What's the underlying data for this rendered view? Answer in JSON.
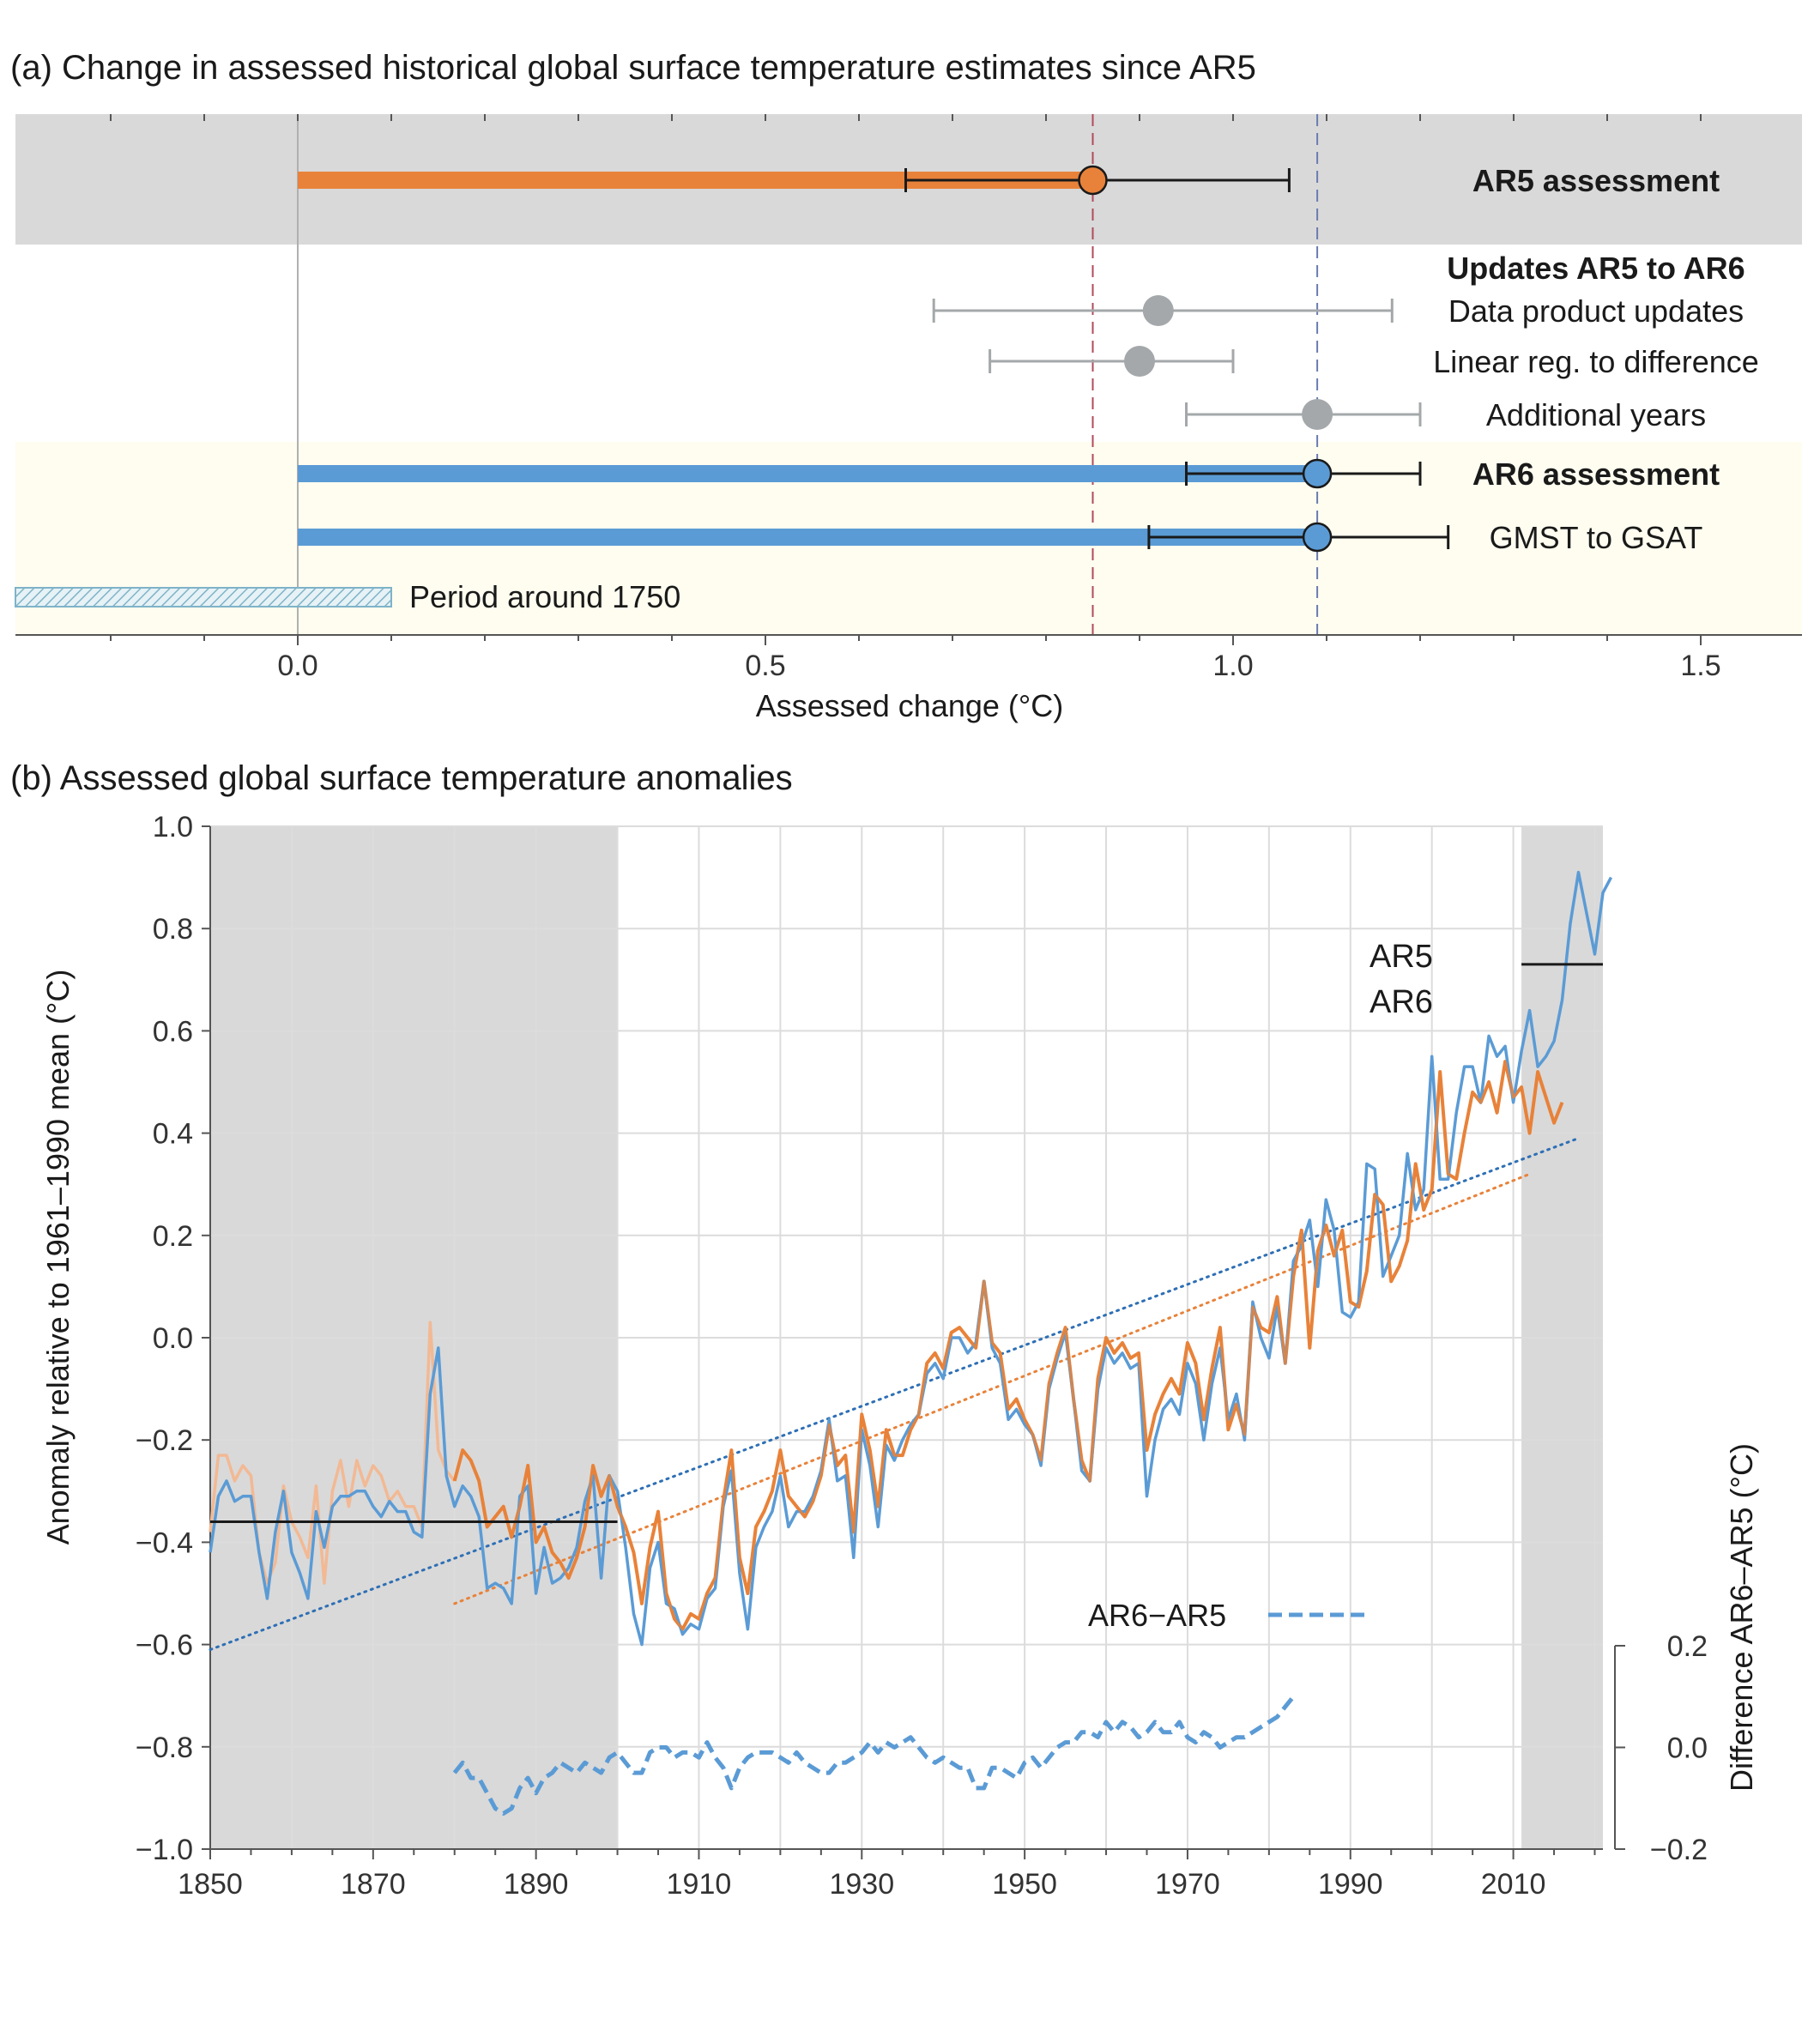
{
  "panel_a": {
    "title": "(a) Change in assessed historical global surface temperature estimates since AR5",
    "xlabel": "Assessed change (°C)",
    "xlim": [
      -0.3,
      1.6
    ],
    "ticks": [
      "0.0",
      "0.5",
      "1.0",
      "1.5"
    ],
    "colors": {
      "ar5": "#e8823a",
      "ar6": "#5b9bd5",
      "update": "#a4a8aa",
      "band_ar5": "#d9d9d9",
      "band_ar6": "#fefdf0"
    },
    "rows": [
      {
        "label": "AR5 assessment",
        "bold": true,
        "value": 0.85,
        "low": 0.65,
        "high": 1.06,
        "bar": true,
        "color": "#e8823a"
      },
      {
        "label": "Updates AR5 to AR6",
        "bold": true,
        "header": true
      },
      {
        "label": "Data product updates",
        "value": 0.92,
        "low": 0.68,
        "high": 1.17,
        "color": "#a4a8aa"
      },
      {
        "label": "Linear reg. to difference",
        "value": 0.9,
        "low": 0.74,
        "high": 1.0,
        "color": "#a4a8aa"
      },
      {
        "label": "Additional years",
        "value": 1.09,
        "low": 0.95,
        "high": 1.2,
        "color": "#a4a8aa"
      },
      {
        "label": "AR6 assessment",
        "bold": true,
        "value": 1.09,
        "low": 0.95,
        "high": 1.2,
        "bar": true,
        "color": "#5b9bd5"
      },
      {
        "label": "GMST to GSAT",
        "value": 1.09,
        "low": 0.91,
        "high": 1.23,
        "bar": true,
        "color": "#5b9bd5"
      }
    ],
    "period_label": "Period around 1750",
    "period_range": [
      -0.3,
      0.1
    ],
    "ref_lines": [
      0.85,
      1.09
    ]
  },
  "chart_data": {
    "type": "line",
    "title": "(b) Assessed global surface temperature anomalies",
    "xlabel": "",
    "ylabel": "Anomaly relative to 1961–1990 mean (°C)",
    "ylabel_right": "Difference AR6–AR5 (°C)",
    "xlim": [
      1850,
      2021
    ],
    "ylim": [
      -1.0,
      1.0
    ],
    "yright_lim": [
      -0.2,
      0.2
    ],
    "xticks": [
      1850,
      1870,
      1890,
      1910,
      1930,
      1950,
      1970,
      1990,
      2010
    ],
    "yticks": [
      "1.0",
      "0.8",
      "0.6",
      "0.4",
      "0.2",
      "0.0",
      "−0.2",
      "−0.4",
      "−0.6",
      "−0.8",
      "−1.0"
    ],
    "yright_ticks": [
      "0.2",
      "0.0",
      "−0.2"
    ],
    "shaded_periods": [
      [
        1850,
        1900
      ],
      [
        2011,
        2020
      ]
    ],
    "baselines": [
      {
        "x": [
          1850,
          1900
        ],
        "y": -0.36
      },
      {
        "x": [
          2011,
          2020
        ],
        "y": 0.73
      }
    ],
    "grid": true,
    "legend": [
      {
        "name": "AR5",
        "color": "#e8823a"
      },
      {
        "name": "AR6",
        "color": "#5b9bd5"
      },
      {
        "name": "AR6−AR5",
        "color": "#5b9bd5",
        "style": "dashed"
      }
    ],
    "series": [
      {
        "name": "AR5",
        "color": "#e8823a",
        "x_start": 1850,
        "values": [
          -0.38,
          -0.23,
          -0.23,
          -0.28,
          -0.25,
          -0.27,
          -0.42,
          -0.48,
          -0.44,
          -0.29,
          -0.36,
          -0.39,
          -0.43,
          -0.29,
          -0.48,
          -0.3,
          -0.24,
          -0.33,
          -0.24,
          -0.29,
          -0.25,
          -0.27,
          -0.32,
          -0.3,
          -0.33,
          -0.33,
          -0.37,
          0.03,
          -0.22,
          -0.26,
          -0.28,
          -0.22,
          -0.24,
          -0.28,
          -0.37,
          -0.35,
          -0.33,
          -0.39,
          -0.33,
          -0.25,
          -0.4,
          -0.37,
          -0.42,
          -0.44,
          -0.47,
          -0.43,
          -0.37,
          -0.25,
          -0.31,
          -0.27,
          -0.33,
          -0.37,
          -0.42,
          -0.52,
          -0.41,
          -0.34,
          -0.5,
          -0.55,
          -0.57,
          -0.54,
          -0.55,
          -0.5,
          -0.47,
          -0.32,
          -0.22,
          -0.43,
          -0.5,
          -0.37,
          -0.34,
          -0.3,
          -0.22,
          -0.31,
          -0.33,
          -0.35,
          -0.32,
          -0.27,
          -0.17,
          -0.25,
          -0.23,
          -0.38,
          -0.15,
          -0.22,
          -0.33,
          -0.18,
          -0.23,
          -0.23,
          -0.18,
          -0.15,
          -0.05,
          -0.03,
          -0.06,
          0.01,
          0.02,
          0.0,
          -0.02,
          0.11,
          -0.01,
          -0.03,
          -0.14,
          -0.12,
          -0.16,
          -0.19,
          -0.24,
          -0.09,
          -0.03,
          0.02,
          -0.12,
          -0.24,
          -0.28,
          -0.08,
          0.0,
          -0.03,
          -0.01,
          -0.04,
          -0.03,
          -0.22,
          -0.15,
          -0.11,
          -0.08,
          -0.11,
          -0.01,
          -0.05,
          -0.16,
          -0.06,
          0.02,
          -0.18,
          -0.13,
          -0.19,
          0.06,
          0.02,
          0.01,
          0.08,
          -0.05,
          0.12,
          0.21,
          -0.02,
          0.17,
          0.22,
          0.16,
          0.21,
          0.07,
          0.06,
          0.13,
          0.28,
          0.26,
          0.11,
          0.14,
          0.19,
          0.34,
          0.25,
          0.29,
          0.52,
          0.32,
          0.31,
          0.4,
          0.48,
          0.46,
          0.5,
          0.44,
          0.54,
          0.47,
          0.49,
          0.4,
          0.52,
          0.47,
          0.42,
          0.46
        ]
      },
      {
        "name": "AR6",
        "color": "#5b9bd5",
        "x_start": 1850,
        "values": [
          -0.42,
          -0.31,
          -0.28,
          -0.32,
          -0.31,
          -0.31,
          -0.42,
          -0.51,
          -0.38,
          -0.3,
          -0.42,
          -0.46,
          -0.51,
          -0.34,
          -0.41,
          -0.33,
          -0.31,
          -0.31,
          -0.3,
          -0.3,
          -0.33,
          -0.35,
          -0.32,
          -0.34,
          -0.34,
          -0.38,
          -0.39,
          -0.11,
          -0.02,
          -0.27,
          -0.33,
          -0.29,
          -0.31,
          -0.35,
          -0.49,
          -0.48,
          -0.49,
          -0.52,
          -0.31,
          -0.29,
          -0.5,
          -0.41,
          -0.48,
          -0.47,
          -0.45,
          -0.41,
          -0.32,
          -0.27,
          -0.47,
          -0.27,
          -0.3,
          -0.41,
          -0.54,
          -0.6,
          -0.45,
          -0.4,
          -0.52,
          -0.53,
          -0.58,
          -0.56,
          -0.57,
          -0.51,
          -0.49,
          -0.33,
          -0.26,
          -0.46,
          -0.57,
          -0.41,
          -0.37,
          -0.34,
          -0.27,
          -0.37,
          -0.34,
          -0.34,
          -0.31,
          -0.26,
          -0.16,
          -0.28,
          -0.27,
          -0.43,
          -0.18,
          -0.25,
          -0.37,
          -0.21,
          -0.24,
          -0.2,
          -0.17,
          -0.15,
          -0.07,
          -0.05,
          -0.08,
          0.0,
          0.0,
          -0.03,
          -0.01,
          0.11,
          -0.02,
          -0.05,
          -0.16,
          -0.14,
          -0.17,
          -0.19,
          -0.25,
          -0.1,
          -0.04,
          0.01,
          -0.12,
          -0.26,
          -0.28,
          -0.1,
          -0.02,
          -0.05,
          -0.03,
          -0.06,
          -0.05,
          -0.31,
          -0.2,
          -0.14,
          -0.12,
          -0.15,
          -0.05,
          -0.09,
          -0.2,
          -0.09,
          -0.02,
          -0.16,
          -0.11,
          -0.2,
          0.07,
          0.0,
          -0.04,
          0.06,
          -0.05,
          0.15,
          0.18,
          0.23,
          0.1,
          0.27,
          0.21,
          0.05,
          0.04,
          0.07,
          0.34,
          0.33,
          0.12,
          0.16,
          0.2,
          0.36,
          0.25,
          0.29,
          0.55,
          0.31,
          0.31,
          0.44,
          0.53,
          0.53,
          0.46,
          0.59,
          0.55,
          0.57,
          0.46,
          0.56,
          0.64,
          0.53,
          0.55,
          0.58,
          0.66,
          0.81,
          0.91,
          0.83,
          0.75,
          0.87,
          0.9
        ]
      },
      {
        "name": "AR6−AR5",
        "color": "#5b9bd5",
        "style": "dashed",
        "axis": "right",
        "x_start": 1880,
        "values": [
          -0.05,
          -0.03,
          -0.06,
          -0.06,
          -0.09,
          -0.12,
          -0.13,
          -0.12,
          -0.08,
          -0.06,
          -0.09,
          -0.06,
          -0.05,
          -0.03,
          -0.04,
          -0.05,
          -0.03,
          -0.04,
          -0.05,
          -0.02,
          -0.01,
          -0.03,
          -0.05,
          -0.05,
          -0.01,
          0.0,
          0.0,
          -0.02,
          -0.01,
          -0.01,
          -0.02,
          0.01,
          -0.02,
          -0.04,
          -0.08,
          -0.04,
          -0.02,
          -0.01,
          -0.01,
          -0.01,
          -0.02,
          -0.03,
          -0.01,
          -0.03,
          -0.04,
          -0.05,
          -0.05,
          -0.03,
          -0.03,
          -0.02,
          -0.01,
          0.01,
          -0.01,
          0.01,
          0.0,
          0.01,
          0.02,
          0.0,
          -0.02,
          -0.03,
          -0.02,
          -0.03,
          -0.04,
          -0.04,
          -0.08,
          -0.08,
          -0.04,
          -0.04,
          -0.05,
          -0.06,
          -0.03,
          -0.02,
          -0.04,
          -0.02,
          0.0,
          0.01,
          0.01,
          0.03,
          0.03,
          0.02,
          0.05,
          0.03,
          0.05,
          0.04,
          0.02,
          0.03,
          0.05,
          0.03,
          0.03,
          0.05,
          0.02,
          0.01,
          0.03,
          0.02,
          0.0,
          0.01,
          0.02,
          0.02,
          0.03,
          0.04,
          0.05,
          0.06,
          0.08,
          0.1
        ]
      }
    ],
    "trend_lines": [
      {
        "name": "AR6 trend",
        "color": "#2e6fb5",
        "x": [
          1850,
          2018
        ],
        "y": [
          -0.61,
          0.39
        ]
      },
      {
        "name": "AR5 trend",
        "color": "#e8823a",
        "x": [
          1880,
          2012
        ],
        "y": [
          -0.52,
          0.32
        ]
      }
    ]
  }
}
